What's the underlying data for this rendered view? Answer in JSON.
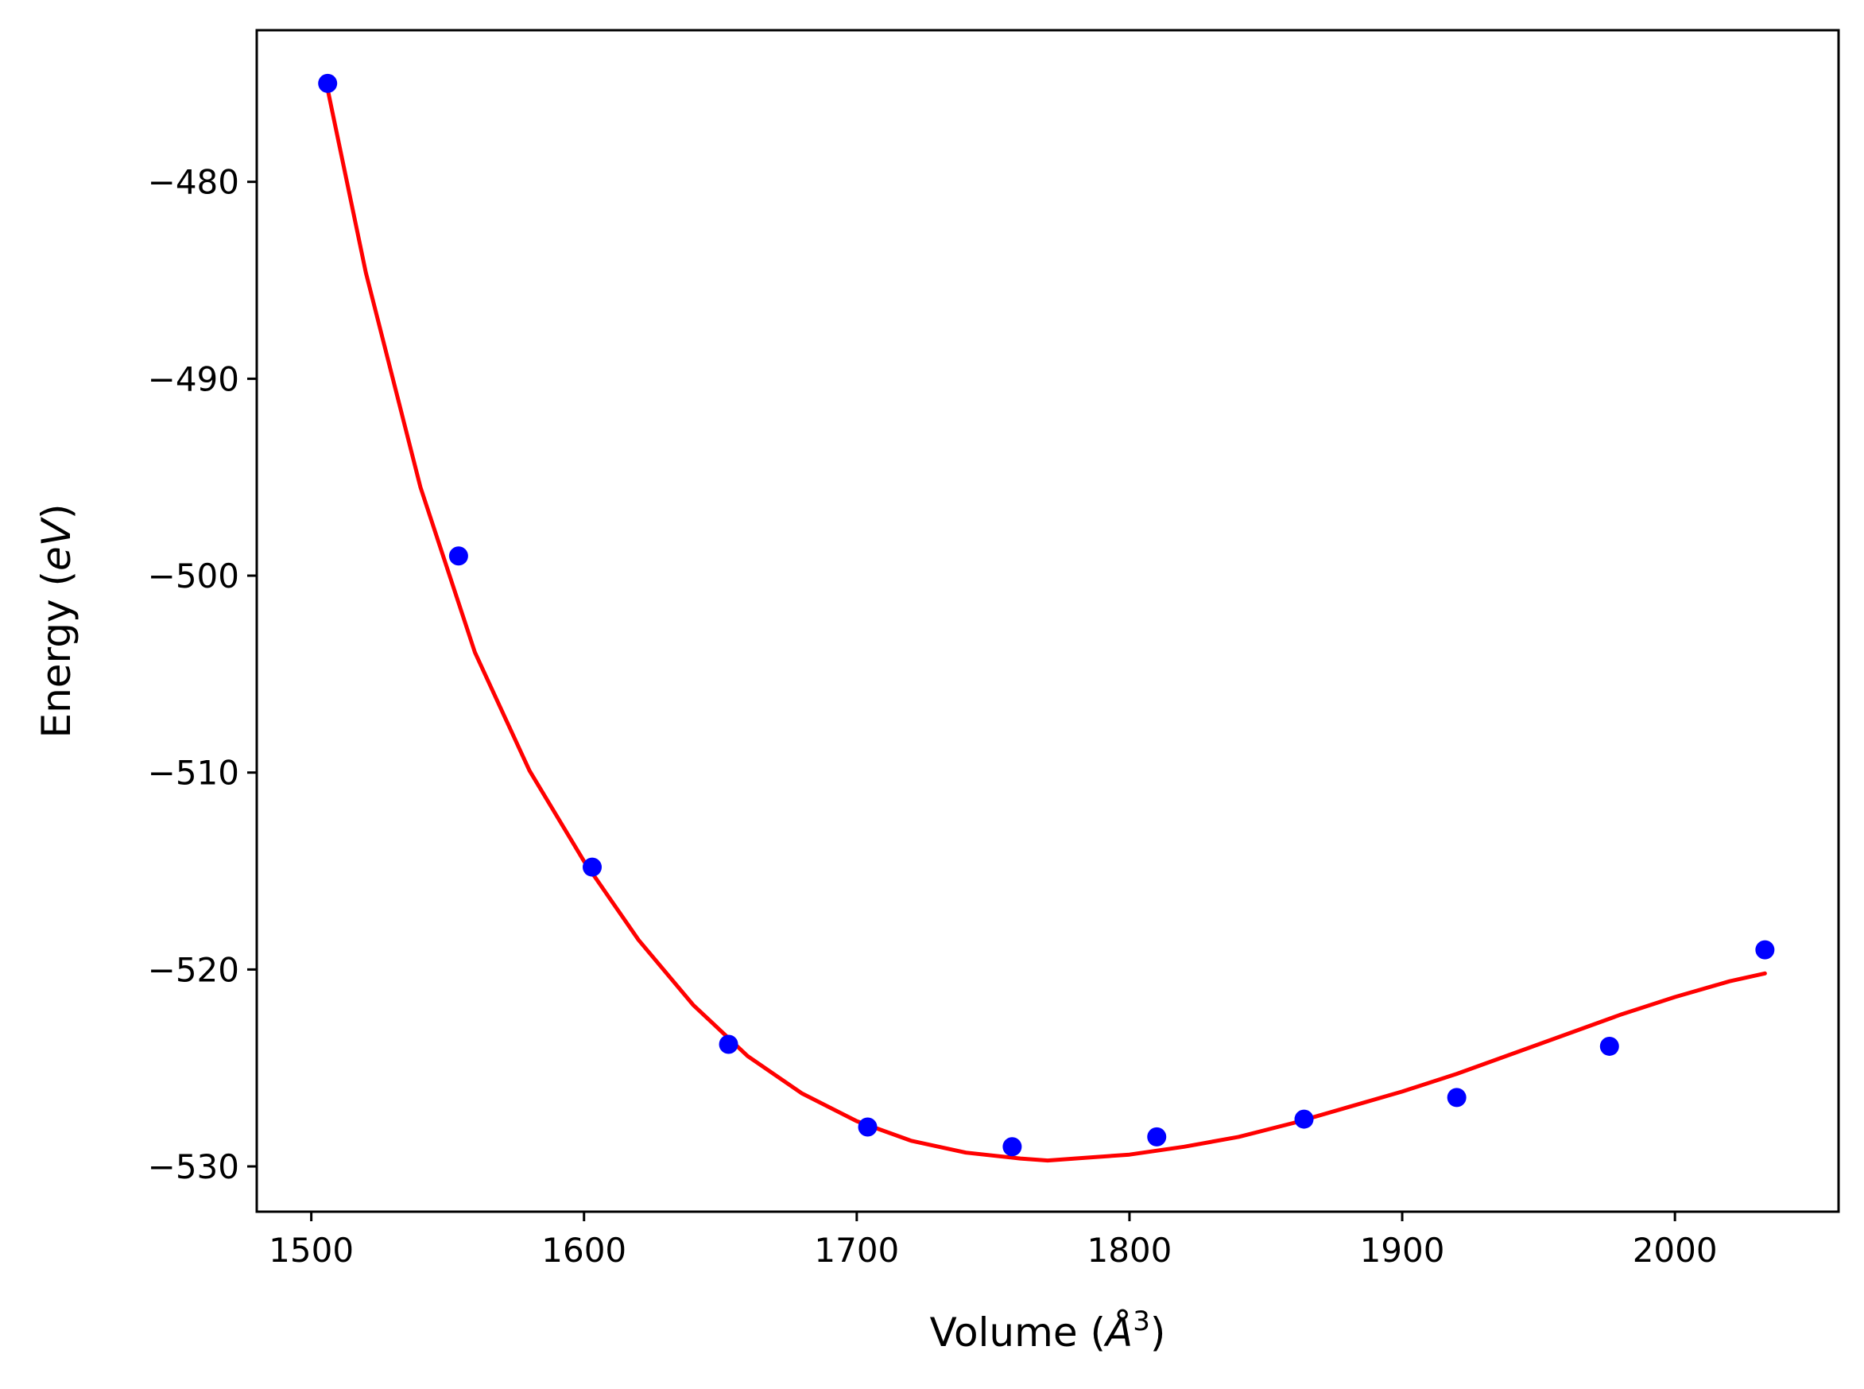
{
  "chart_data": {
    "type": "scatter",
    "xlabel": "Volume (",
    "xlabel_symbol": "Å",
    "xlabel_sup": "3",
    "xlabel_close": ")",
    "ylabel": "Energy (",
    "ylabel_unit": "eV",
    "ylabel_close": ")",
    "xlim": [
      1480,
      2060
    ],
    "ylim": [
      -532.3,
      -472.3
    ],
    "x_ticks": [
      1500,
      1600,
      1700,
      1800,
      1900,
      2000
    ],
    "x_tick_labels": [
      "1500",
      "1600",
      "1700",
      "1800",
      "1900",
      "2000"
    ],
    "y_ticks": [
      -480,
      -490,
      -500,
      -510,
      -520,
      -530
    ],
    "y_tick_labels": [
      "−480",
      "−490",
      "−500",
      "−510",
      "−520",
      "−530"
    ],
    "grid": false,
    "legend": "none",
    "series": [
      {
        "kind": "points",
        "color": "#0000ff",
        "x": [
          1506,
          1554,
          1603,
          1653,
          1704,
          1757,
          1810,
          1864,
          1920,
          1976,
          2033
        ],
        "y": [
          -475.0,
          -499.0,
          -514.8,
          -523.8,
          -528.0,
          -529.0,
          -528.5,
          -527.6,
          -526.5,
          -523.9,
          -519.0
        ]
      },
      {
        "kind": "fit-line",
        "color": "#ff0000",
        "x": [
          1506,
          1520,
          1540,
          1560,
          1580,
          1600,
          1620,
          1640,
          1660,
          1680,
          1700,
          1720,
          1740,
          1760,
          1770,
          1780,
          1800,
          1820,
          1840,
          1860,
          1880,
          1900,
          1920,
          1940,
          1960,
          1980,
          2000,
          2020,
          2033
        ],
        "y": [
          -475.3,
          -484.6,
          -495.5,
          -503.9,
          -509.9,
          -514.5,
          -518.5,
          -521.8,
          -524.4,
          -526.3,
          -527.7,
          -528.7,
          -529.3,
          -529.6,
          -529.7,
          -529.6,
          -529.4,
          -529.0,
          -528.5,
          -527.8,
          -527.0,
          -526.2,
          -525.3,
          -524.3,
          -523.3,
          -522.3,
          -521.4,
          -520.6,
          -520.2
        ]
      }
    ]
  }
}
